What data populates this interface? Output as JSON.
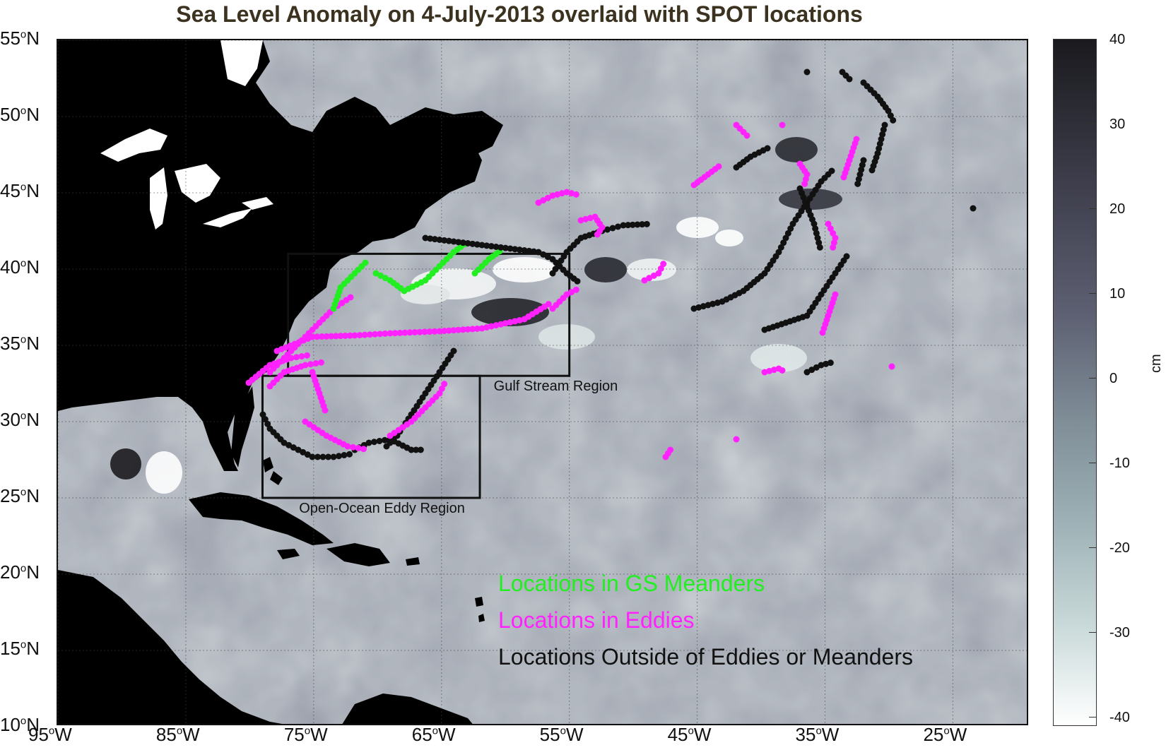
{
  "title": "Sea Level Anomaly on 4-July-2013 overlaid with SPOT locations",
  "axes": {
    "lat_ticks": [
      {
        "deg": "55",
        "hem": "N",
        "value": 55
      },
      {
        "deg": "50",
        "hem": "N",
        "value": 50
      },
      {
        "deg": "45",
        "hem": "N",
        "value": 45
      },
      {
        "deg": "40",
        "hem": "N",
        "value": 40
      },
      {
        "deg": "35",
        "hem": "N",
        "value": 35
      },
      {
        "deg": "30",
        "hem": "N",
        "value": 30
      },
      {
        "deg": "25",
        "hem": "N",
        "value": 25
      },
      {
        "deg": "20",
        "hem": "N",
        "value": 20
      },
      {
        "deg": "15",
        "hem": "N",
        "value": 15
      },
      {
        "deg": "10",
        "hem": "N",
        "value": 10
      }
    ],
    "lon_ticks": [
      {
        "deg": "95",
        "hem": "W",
        "value": -95
      },
      {
        "deg": "85",
        "hem": "W",
        "value": -85
      },
      {
        "deg": "75",
        "hem": "W",
        "value": -75
      },
      {
        "deg": "65",
        "hem": "W",
        "value": -65
      },
      {
        "deg": "55",
        "hem": "W",
        "value": -55
      },
      {
        "deg": "45",
        "hem": "W",
        "value": -45
      },
      {
        "deg": "35",
        "hem": "W",
        "value": -35
      },
      {
        "deg": "25",
        "hem": "W",
        "value": -25
      }
    ],
    "lon_range": [
      -95,
      -19
    ],
    "lat_range": [
      10,
      55
    ]
  },
  "regions": [
    {
      "name": "Gulf Stream Region",
      "lon": [
        -77,
        -55
      ],
      "lat": [
        33,
        41
      ]
    },
    {
      "name": "Open-Ocean Eddy Region",
      "lon": [
        -79,
        -62
      ],
      "lat": [
        25,
        33
      ]
    }
  ],
  "legend": [
    {
      "label": "Locations in GS Meanders",
      "color": "#22ee22"
    },
    {
      "label": "Locations in Eddies",
      "color": "#ff22ff"
    },
    {
      "label": "Locations Outside of Eddies or Meanders",
      "color": "#111111"
    }
  ],
  "colorbar": {
    "unit": "cm",
    "ticks": [
      "40",
      "30",
      "20",
      "10",
      "0",
      "-10",
      "-20",
      "-30",
      "-40"
    ],
    "range": [
      -40,
      40
    ]
  },
  "colors": {
    "land": "#000000",
    "lakes": "#ffffff",
    "ocean": "#7a8291",
    "grid": "#444444",
    "box": "#111111"
  }
}
